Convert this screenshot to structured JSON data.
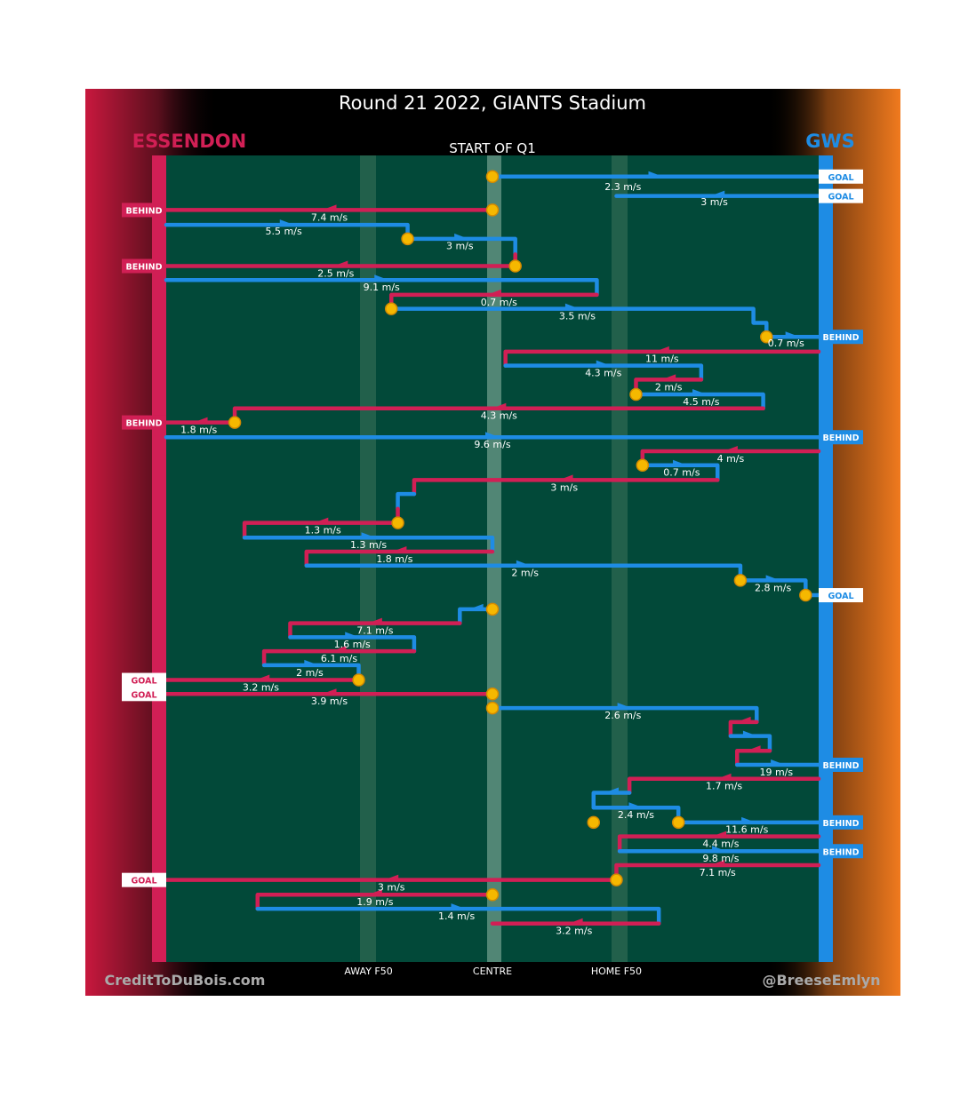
{
  "title": "Round 21 2022, GIANTS Stadium",
  "quarter_label": "START OF Q1",
  "teams": {
    "left": {
      "name": "ESSENDON",
      "color": "#d11f55"
    },
    "right": {
      "name": "GWS",
      "color": "#1e8ce4"
    }
  },
  "colors": {
    "field": "#024939",
    "essendon": "#d11f55",
    "gws": "#1e8ce4",
    "gws_orange": "#e8741e",
    "marker": "#f5b800"
  },
  "credits": {
    "left": "CreditToDuBois.com",
    "right": "@BreeseEmlyn"
  },
  "chart_data": {
    "type": "line",
    "title": "Round 21 2022, GIANTS Stadium",
    "subtitle": "START OF Q1",
    "xlabel": "",
    "ylabel": "",
    "xlim": [
      0,
      100
    ],
    "x_ticks": [
      {
        "x": 31,
        "label": "AWAY F50"
      },
      {
        "x": 50,
        "label": "CENTRE"
      },
      {
        "x": 69,
        "label": "HOME F50"
      }
    ],
    "ylim": [
      0,
      100
    ],
    "legend": [
      "ESSENDON",
      "GWS"
    ],
    "series": [
      {
        "name": "c1",
        "team": "GWS",
        "pts": [
          [
            50,
            1
          ],
          [
            100,
            1
          ]
        ],
        "label": "2.3 m/s",
        "lab": [
          70,
          2.3
        ],
        "end_tag": "GOAL"
      },
      {
        "name": "c2",
        "team": "GWS",
        "pts": [
          [
            100,
            3.5
          ],
          [
            69,
            3.5
          ]
        ],
        "label": "3 m/s",
        "lab": [
          84,
          4.2
        ],
        "end_tag": "GOAL"
      },
      {
        "name": "c3",
        "team": "ESS",
        "pts": [
          [
            50,
            5.3
          ],
          [
            0,
            5.3
          ]
        ],
        "label": "7.4 m/s",
        "lab": [
          25,
          6.2
        ],
        "end_tag": "BEHIND"
      },
      {
        "name": "c4",
        "team": "GWS",
        "pts": [
          [
            0,
            7.2
          ],
          [
            37,
            7.2
          ],
          [
            37,
            9
          ]
        ],
        "label": "5.5 m/s",
        "lab": [
          18,
          8
        ]
      },
      {
        "name": "c5",
        "team": "GWS",
        "pts": [
          [
            37,
            9
          ],
          [
            53.5,
            9
          ],
          [
            53.5,
            11
          ]
        ],
        "label": "3 m/s",
        "lab": [
          45,
          9.9
        ]
      },
      {
        "name": "c6",
        "team": "ESS",
        "pts": [
          [
            53.5,
            11
          ],
          [
            53.5,
            12.5
          ],
          [
            0,
            12.5
          ]
        ],
        "label": "2.5 m/s",
        "lab": [
          26,
          13.4
        ],
        "end_tag": "BEHIND"
      },
      {
        "name": "c7",
        "team": "GWS",
        "pts": [
          [
            0,
            14.3
          ],
          [
            66,
            14.3
          ],
          [
            66,
            16.2
          ]
        ],
        "label": "9.1 m/s",
        "lab": [
          33,
          15.2
        ]
      },
      {
        "name": "c8",
        "team": "ESS",
        "pts": [
          [
            66,
            16.2
          ],
          [
            34.5,
            16.2
          ],
          [
            34.5,
            18
          ]
        ],
        "label": "0.7 m/s",
        "lab": [
          51,
          17.1
        ]
      },
      {
        "name": "c9",
        "team": "GWS",
        "pts": [
          [
            34.5,
            18
          ],
          [
            90,
            18
          ],
          [
            90,
            19.8
          ],
          [
            92,
            19.8
          ],
          [
            92,
            21.6
          ]
        ],
        "label": "3.5 m/s",
        "lab": [
          63,
          18.9
        ]
      },
      {
        "name": "c10",
        "team": "GWS",
        "pts": [
          [
            92,
            21.6
          ],
          [
            100,
            21.6
          ]
        ],
        "label": "0.7 m/s",
        "lab": [
          95,
          22.4
        ],
        "end_tag": "BEHIND"
      },
      {
        "name": "c11",
        "team": "ESS",
        "pts": [
          [
            100,
            23.5
          ],
          [
            52,
            23.5
          ],
          [
            52,
            25.3
          ]
        ],
        "label": "11 m/s",
        "lab": [
          76,
          24.4
        ]
      },
      {
        "name": "c12",
        "team": "GWS",
        "pts": [
          [
            52,
            25.3
          ],
          [
            82,
            25.3
          ],
          [
            82,
            27.1
          ]
        ],
        "label": "4.3 m/s",
        "lab": [
          67,
          26.2
        ]
      },
      {
        "name": "c13",
        "team": "ESS",
        "pts": [
          [
            82,
            27.1
          ],
          [
            72,
            27.1
          ],
          [
            72,
            29
          ]
        ],
        "label": "2 m/s",
        "lab": [
          77,
          28
        ]
      },
      {
        "name": "c14",
        "team": "GWS",
        "pts": [
          [
            72,
            29
          ],
          [
            91.5,
            29
          ],
          [
            91.5,
            30.8
          ]
        ],
        "label": "4.5 m/s",
        "lab": [
          82,
          29.9
        ]
      },
      {
        "name": "c15",
        "team": "ESS",
        "pts": [
          [
            91.5,
            30.8
          ],
          [
            10.5,
            30.8
          ],
          [
            10.5,
            32.6
          ]
        ],
        "label": "4.3 m/s",
        "lab": [
          51,
          31.7
        ]
      },
      {
        "name": "c16",
        "team": "ESS",
        "pts": [
          [
            10.5,
            32.6
          ],
          [
            0,
            32.6
          ]
        ],
        "label": "1.8 m/s",
        "lab": [
          5,
          33.5
        ],
        "end_tag": "BEHIND"
      },
      {
        "name": "c17",
        "team": "GWS",
        "pts": [
          [
            0,
            34.5
          ],
          [
            100,
            34.5
          ]
        ],
        "label": "9.6 m/s",
        "lab": [
          50,
          35.4
        ],
        "end_tag": "BEHIND"
      },
      {
        "name": "c18",
        "team": "ESS",
        "pts": [
          [
            100,
            36.3
          ],
          [
            73,
            36.3
          ],
          [
            73,
            38.1
          ]
        ],
        "label": "4 m/s",
        "lab": [
          86.5,
          37.2
        ]
      },
      {
        "name": "c19",
        "team": "GWS",
        "pts": [
          [
            73,
            38.1
          ],
          [
            84.5,
            38.1
          ],
          [
            84.5,
            40
          ]
        ],
        "label": "0.7 m/s",
        "lab": [
          79,
          39
        ]
      },
      {
        "name": "c20",
        "team": "ESS",
        "pts": [
          [
            84.5,
            40
          ],
          [
            38,
            40
          ],
          [
            38,
            41.8
          ]
        ],
        "label": "3 m/s",
        "lab": [
          61,
          40.9
        ]
      },
      {
        "name": "c21",
        "team": "GWS",
        "pts": [
          [
            38,
            41.8
          ],
          [
            35.5,
            41.8
          ],
          [
            35.5,
            43.7
          ]
        ],
        "label": "",
        "lab": [
          0,
          0
        ]
      },
      {
        "name": "c22",
        "team": "ESS",
        "pts": [
          [
            35.5,
            43.7
          ],
          [
            35.5,
            45.5
          ],
          [
            12,
            45.5
          ],
          [
            12,
            47.4
          ]
        ],
        "label": "1.3 m/s",
        "lab": [
          24,
          46.4
        ]
      },
      {
        "name": "c23",
        "team": "GWS",
        "pts": [
          [
            12,
            47.4
          ],
          [
            50,
            47.4
          ],
          [
            50,
            49.2
          ]
        ],
        "label": "1.3 m/s",
        "lab": [
          31,
          48.3
        ]
      },
      {
        "name": "c24",
        "team": "ESS",
        "pts": [
          [
            50,
            49.2
          ],
          [
            21.5,
            49.2
          ],
          [
            21.5,
            51
          ]
        ],
        "label": "1.8 m/s",
        "lab": [
          35,
          50.1
        ]
      },
      {
        "name": "c25",
        "team": "GWS",
        "pts": [
          [
            21.5,
            51
          ],
          [
            88,
            51
          ],
          [
            88,
            52.9
          ]
        ],
        "label": "2 m/s",
        "lab": [
          55,
          51.9
        ]
      },
      {
        "name": "c26",
        "team": "GWS",
        "pts": [
          [
            88,
            52.9
          ],
          [
            98,
            52.9
          ],
          [
            98,
            54.8
          ]
        ],
        "label": "2.8 m/s",
        "lab": [
          93,
          53.8
        ]
      },
      {
        "name": "c27",
        "team": "GWS",
        "pts": [
          [
            98,
            54.8
          ],
          [
            100,
            54.8
          ]
        ],
        "label": "",
        "lab": [
          0,
          0
        ],
        "end_tag": "GOAL"
      },
      {
        "name": "c28",
        "team": "GWS",
        "pts": [
          [
            50,
            56.6
          ],
          [
            45,
            56.6
          ],
          [
            45,
            58.4
          ]
        ],
        "label": "",
        "lab": [
          0,
          0
        ]
      },
      {
        "name": "c29",
        "team": "ESS",
        "pts": [
          [
            45,
            58.4
          ],
          [
            19,
            58.4
          ],
          [
            19,
            60.2
          ]
        ],
        "label": "7.1 m/s",
        "lab": [
          32,
          59.3
        ]
      },
      {
        "name": "c30",
        "team": "GWS",
        "pts": [
          [
            19,
            60.2
          ],
          [
            38,
            60.2
          ],
          [
            38,
            62
          ]
        ],
        "label": "1.6 m/s",
        "lab": [
          28.5,
          61.1
        ]
      },
      {
        "name": "c31",
        "team": "ESS",
        "pts": [
          [
            38,
            62
          ],
          [
            15,
            62
          ],
          [
            15,
            63.8
          ]
        ],
        "label": "6.1 m/s",
        "lab": [
          26.5,
          62.9
        ]
      },
      {
        "name": "c32",
        "team": "GWS",
        "pts": [
          [
            15,
            63.8
          ],
          [
            29.5,
            63.8
          ],
          [
            29.5,
            65.7
          ]
        ],
        "label": "2 m/s",
        "lab": [
          22,
          64.7
        ]
      },
      {
        "name": "c33",
        "team": "ESS",
        "pts": [
          [
            29.5,
            65.7
          ],
          [
            0,
            65.7
          ]
        ],
        "label": "3.2 m/s",
        "lab": [
          14.5,
          66.6
        ],
        "end_tag": "GOAL"
      },
      {
        "name": "c34",
        "team": "ESS",
        "pts": [
          [
            50,
            67.5
          ],
          [
            0,
            67.5
          ]
        ],
        "label": "3.9 m/s",
        "lab": [
          25,
          68.4
        ],
        "end_tag": "GOAL"
      },
      {
        "name": "c35",
        "team": "GWS",
        "pts": [
          [
            50,
            69.3
          ],
          [
            90.5,
            69.3
          ],
          [
            90.5,
            71.1
          ]
        ],
        "label": "2.6 m/s",
        "lab": [
          70,
          70.2
        ]
      },
      {
        "name": "c36",
        "team": "ESS",
        "pts": [
          [
            90.5,
            71.1
          ],
          [
            86.5,
            71.1
          ],
          [
            86.5,
            72.9
          ]
        ],
        "label": "",
        "lab": [
          0,
          0
        ]
      },
      {
        "name": "c37",
        "team": "GWS",
        "pts": [
          [
            86.5,
            72.9
          ],
          [
            92.5,
            72.9
          ],
          [
            92.5,
            74.8
          ]
        ],
        "label": "",
        "lab": [
          0,
          0
        ]
      },
      {
        "name": "c38",
        "team": "ESS",
        "pts": [
          [
            92.5,
            74.8
          ],
          [
            87.5,
            74.8
          ],
          [
            87.5,
            76.6
          ]
        ],
        "label": "",
        "lab": [
          0,
          0
        ]
      },
      {
        "name": "c39",
        "team": "GWS",
        "pts": [
          [
            87.5,
            76.6
          ],
          [
            100,
            76.6
          ]
        ],
        "label": "19 m/s",
        "lab": [
          93.5,
          77.5
        ],
        "end_tag": "BEHIND"
      },
      {
        "name": "c40",
        "team": "ESS",
        "pts": [
          [
            100,
            78.4
          ],
          [
            71,
            78.4
          ],
          [
            71,
            80.2
          ]
        ],
        "label": "1.7 m/s",
        "lab": [
          85.5,
          79.3
        ]
      },
      {
        "name": "c41",
        "team": "GWS",
        "pts": [
          [
            71,
            80.2
          ],
          [
            65.5,
            80.2
          ],
          [
            65.5,
            82.1
          ]
        ],
        "label": "",
        "lab": [
          0,
          0
        ]
      },
      {
        "name": "c42",
        "team": "GWS",
        "pts": [
          [
            65.5,
            82.1
          ],
          [
            78.5,
            82.1
          ],
          [
            78.5,
            84
          ]
        ],
        "label": "2.4 m/s",
        "lab": [
          72,
          83
        ]
      },
      {
        "name": "c43",
        "team": "GWS",
        "pts": [
          [
            78.5,
            84
          ],
          [
            100,
            84
          ]
        ],
        "label": "11.6 m/s",
        "lab": [
          89,
          84.9
        ],
        "end_tag": "BEHIND"
      },
      {
        "name": "c44",
        "team": "ESS",
        "pts": [
          [
            100,
            85.8
          ],
          [
            69.5,
            85.8
          ],
          [
            69.5,
            87.7
          ]
        ],
        "label": "4.4 m/s",
        "lab": [
          85,
          86.7
        ]
      },
      {
        "name": "c45",
        "team": "GWS",
        "pts": [
          [
            69.5,
            87.7
          ],
          [
            100,
            87.7
          ]
        ],
        "label": "9.8 m/s",
        "lab": [
          85,
          88.6
        ],
        "end_tag": "BEHIND"
      },
      {
        "name": "c46",
        "team": "ESS",
        "pts": [
          [
            100,
            89.5
          ],
          [
            69,
            89.5
          ],
          [
            69,
            91.4
          ]
        ],
        "label": "7.1 m/s",
        "lab": [
          84.5,
          90.4
        ]
      },
      {
        "name": "c47",
        "team": "ESS",
        "pts": [
          [
            69,
            91.4
          ],
          [
            0,
            91.4
          ]
        ],
        "label": "3 m/s",
        "lab": [
          34.5,
          92.3
        ],
        "end_tag": "GOAL"
      },
      {
        "name": "c48",
        "team": "ESS",
        "pts": [
          [
            50,
            93.3
          ],
          [
            14,
            93.3
          ],
          [
            14,
            95.1
          ]
        ],
        "label": "1.9 m/s",
        "lab": [
          32,
          94.2
        ]
      },
      {
        "name": "c49",
        "team": "GWS",
        "pts": [
          [
            14,
            95.1
          ],
          [
            75.5,
            95.1
          ],
          [
            75.5,
            97
          ]
        ],
        "label": "1.4 m/s",
        "lab": [
          44.5,
          96
        ]
      },
      {
        "name": "c50",
        "team": "ESS",
        "pts": [
          [
            75.5,
            97
          ],
          [
            50,
            97
          ]
        ],
        "label": "3.2 m/s",
        "lab": [
          62.5,
          97.9
        ]
      }
    ],
    "markers": [
      [
        50,
        1
      ],
      [
        50,
        5.3
      ],
      [
        37,
        9
      ],
      [
        53.5,
        12.5
      ],
      [
        34.5,
        18
      ],
      [
        92,
        21.6
      ],
      [
        72,
        29
      ],
      [
        10.5,
        32.6
      ],
      [
        73,
        38.1
      ],
      [
        35.5,
        45.5
      ],
      [
        88,
        52.9
      ],
      [
        98,
        54.8
      ],
      [
        50,
        56.6
      ],
      [
        29.5,
        65.7
      ],
      [
        50,
        67.5
      ],
      [
        50,
        69.3
      ],
      [
        65.5,
        84
      ],
      [
        78.5,
        84
      ],
      [
        69,
        91.4
      ],
      [
        50,
        93.3
      ]
    ]
  }
}
